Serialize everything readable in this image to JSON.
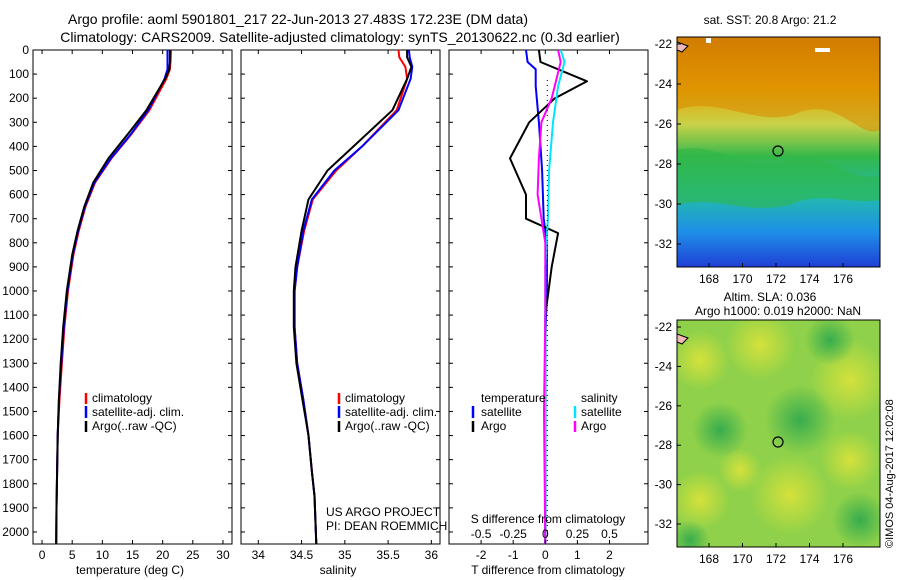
{
  "title": {
    "line1": "Argo profile: aoml 5901801_217 22-Jun-2013 27.483S 172.23E (DM data)",
    "line2": "Climatology: CARS2009. Satellite-adjusted climatology: synTS_20130622.nc (0.3d earlier)"
  },
  "depth_ticks": [
    "0",
    "100",
    "200",
    "300",
    "400",
    "500",
    "600",
    "700",
    "800",
    "900",
    "1000",
    "1100",
    "1200",
    "1300",
    "1400",
    "1500",
    "1600",
    "1700",
    "1800",
    "1900",
    "2000"
  ],
  "colors": {
    "climatology": "#ff0000",
    "satellite": "#0000ff",
    "argo": "#000000",
    "argo_salinity_diff": "#ff00ff",
    "satellite_salinity_diff": "#00e5ff"
  },
  "panels": {
    "temperature": {
      "xlabel": "temperature (deg C)",
      "xticks": [
        "0",
        "5",
        "10",
        "15",
        "20",
        "25",
        "30"
      ],
      "legend": [
        "climatology",
        "satellite-adj. clim.",
        "Argo(..raw -QC)"
      ]
    },
    "salinity": {
      "xlabel": "salinity",
      "xticks": [
        "34",
        "34.5",
        "35",
        "35.5",
        "36"
      ],
      "legend": [
        "climatology",
        "satellite-adj. clim.",
        "Argo(..raw -QC)"
      ],
      "note_line1": "US ARGO PROJECT",
      "note_line2": "PI: DEAN ROEMMICH"
    },
    "difference": {
      "top_xlabel": "S difference from climatology",
      "top_xticks": [
        "-0.5",
        "-0.25",
        "0",
        "0.25",
        "0.5"
      ],
      "xlabel": "T difference from climatology",
      "xticks": [
        "-2",
        "-1",
        "0",
        "1",
        "2"
      ],
      "legend_temp_title": "temperature",
      "legend_sal_title": "salinity",
      "legend_temp": [
        "satellite",
        "Argo"
      ],
      "legend_sal": [
        "satellite",
        "Argo"
      ]
    },
    "map_sst": {
      "title": "sat. SST: 20.8  Argo: 21.2",
      "lat_ticks": [
        "-22",
        "-24",
        "-26",
        "-28",
        "-30",
        "-32"
      ],
      "lon_ticks": [
        "168",
        "170",
        "172",
        "174",
        "176"
      ]
    },
    "map_sla": {
      "title_line1": "Altim. SLA: 0.036",
      "title_line2": "Argo h1000: 0.019 h2000: NaN",
      "lat_ticks": [
        "-22",
        "-24",
        "-26",
        "-28",
        "-30",
        "-32"
      ],
      "lon_ticks": [
        "168",
        "170",
        "172",
        "174",
        "176"
      ]
    }
  },
  "credit": "©IMOS 04-Aug-2017 12:02:08",
  "chart_data": [
    {
      "type": "line",
      "title": "Argo profile: aoml 5901801_217 22-Jun-2013 27.483S 172.23E (DM data)",
      "xlabel": "temperature (deg C)",
      "ylabel": "",
      "xlim": [
        -1.5,
        31.5
      ],
      "ylim": [
        2050,
        0
      ],
      "series": [
        {
          "name": "climatology",
          "x": [
            21.4,
            21.3,
            21.2,
            20.6,
            17.8,
            14.8,
            11.5,
            8.8,
            7.2,
            6.1,
            5.2,
            4.3,
            3.7,
            3.3,
            2.9,
            2.6,
            2.5,
            2.4,
            2.35
          ],
          "y": [
            0,
            50,
            80,
            120,
            250,
            350,
            450,
            550,
            650,
            750,
            850,
            1000,
            1150,
            1300,
            1450,
            1600,
            1750,
            1900,
            2050
          ]
        },
        {
          "name": "satellite-adj. clim.",
          "x": [
            20.8,
            20.8,
            20.8,
            20.3,
            17.6,
            14.7,
            11.4,
            8.7,
            7.1,
            6.0,
            5.1,
            4.2,
            3.6,
            3.2,
            2.8,
            2.6,
            2.5,
            2.4,
            2.35
          ],
          "y": [
            0,
            50,
            80,
            120,
            250,
            350,
            450,
            550,
            650,
            750,
            850,
            1000,
            1150,
            1300,
            1450,
            1600,
            1750,
            1900,
            2050
          ]
        },
        {
          "name": "Argo(..raw -QC)",
          "x": [
            21.2,
            21.2,
            21.1,
            20.4,
            17.3,
            14.2,
            11.0,
            8.5,
            7.0,
            5.9,
            5.0,
            4.1,
            3.5,
            3.1,
            2.8,
            2.6,
            2.5,
            2.4,
            2.35
          ],
          "y": [
            0,
            50,
            80,
            120,
            250,
            350,
            450,
            550,
            650,
            750,
            850,
            1000,
            1150,
            1300,
            1450,
            1600,
            1750,
            1900,
            2050
          ]
        }
      ]
    },
    {
      "type": "line",
      "xlabel": "salinity",
      "ylabel": "",
      "xlim": [
        33.8,
        36.1
      ],
      "ylim": [
        2050,
        0
      ],
      "series": [
        {
          "name": "climatology",
          "x": [
            35.62,
            35.63,
            35.7,
            35.72,
            35.6,
            35.2,
            34.9,
            34.63,
            34.53,
            34.45,
            34.42,
            34.42,
            34.45,
            34.52,
            34.58,
            34.62,
            34.65,
            34.66,
            34.67
          ],
          "y": [
            0,
            30,
            70,
            120,
            250,
            400,
            500,
            620,
            750,
            900,
            1000,
            1150,
            1300,
            1450,
            1600,
            1750,
            1850,
            1950,
            2050
          ]
        },
        {
          "name": "satellite-adj. clim.",
          "x": [
            35.74,
            35.75,
            35.78,
            35.76,
            35.62,
            35.2,
            34.88,
            34.62,
            34.52,
            34.45,
            34.42,
            34.42,
            34.45,
            34.52,
            34.58,
            34.62,
            34.65,
            34.66,
            34.67
          ],
          "y": [
            0,
            30,
            70,
            120,
            250,
            400,
            500,
            620,
            750,
            900,
            1000,
            1150,
            1300,
            1450,
            1600,
            1750,
            1850,
            1950,
            2050
          ]
        },
        {
          "name": "Argo(..raw -QC)",
          "x": [
            35.72,
            35.72,
            35.77,
            35.72,
            35.55,
            35.1,
            34.8,
            34.58,
            34.5,
            34.43,
            34.41,
            34.41,
            34.44,
            34.51,
            34.58,
            34.62,
            34.65,
            34.66,
            34.67
          ],
          "y": [
            0,
            30,
            70,
            120,
            250,
            400,
            500,
            620,
            750,
            900,
            1000,
            1150,
            1300,
            1450,
            1600,
            1750,
            1850,
            1950,
            2050
          ]
        }
      ]
    },
    {
      "type": "line",
      "xlabel": "T difference from climatology",
      "ylabel": "",
      "xlim": [
        -3,
        3.2
      ],
      "ylim": [
        2050,
        0
      ],
      "series": [
        {
          "name": "temperature satellite",
          "x": [
            -0.6,
            -0.55,
            -0.3,
            -0.3,
            -0.2,
            -0.1,
            -0.05,
            0.05,
            0.05,
            0.0,
            0.0,
            0.0,
            0.0,
            0.0
          ],
          "y": [
            0,
            50,
            80,
            150,
            300,
            500,
            700,
            800,
            1000,
            1200,
            1400,
            1600,
            1800,
            2050
          ]
        },
        {
          "name": "temperature Argo",
          "x": [
            -0.2,
            -0.15,
            1.3,
            0.3,
            -0.5,
            -1.1,
            -0.6,
            -0.6,
            0.4,
            0.2,
            0.0,
            0.0,
            0.0,
            0.0
          ],
          "y": [
            0,
            50,
            130,
            200,
            300,
            450,
            600,
            700,
            760,
            900,
            1100,
            1400,
            1700,
            2050
          ]
        },
        {
          "name": "salinity satellite",
          "x": [
            0.12,
            0.15,
            0.1,
            0.06,
            0.03,
            0.02,
            0.0,
            0.0,
            0.0,
            0.0
          ],
          "y": [
            0,
            50,
            150,
            300,
            500,
            700,
            900,
            1200,
            1600,
            2050
          ]
        },
        {
          "name": "salinity Argo",
          "x": [
            0.1,
            0.12,
            0.05,
            -0.03,
            -0.05,
            -0.06,
            0.0,
            0.0,
            -0.01,
            0.0
          ],
          "y": [
            0,
            50,
            200,
            300,
            450,
            600,
            800,
            1100,
            1500,
            2050
          ]
        }
      ]
    }
  ]
}
